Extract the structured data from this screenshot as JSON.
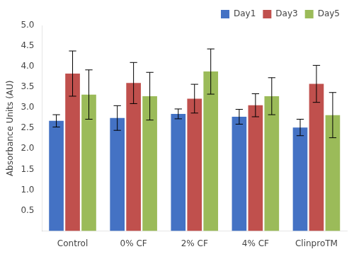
{
  "chart_data": {
    "type": "bar",
    "categories": [
      "Control",
      "0% CF",
      "2% CF",
      "4% CF",
      "ClinproTM"
    ],
    "series": [
      {
        "name": "Day1",
        "color": "#4472C4",
        "values": [
          2.68,
          2.75,
          2.85,
          2.78,
          2.52
        ],
        "errors": [
          0.15,
          0.3,
          0.12,
          0.18,
          0.2
        ]
      },
      {
        "name": "Day3",
        "color": "#C0504D",
        "values": [
          3.83,
          3.6,
          3.22,
          3.06,
          3.58
        ],
        "errors": [
          0.55,
          0.5,
          0.35,
          0.28,
          0.45
        ]
      },
      {
        "name": "Day5",
        "color": "#9BBB59",
        "values": [
          3.32,
          3.28,
          3.88,
          3.28,
          2.82
        ],
        "errors": [
          0.6,
          0.58,
          0.55,
          0.45,
          0.55
        ]
      }
    ],
    "ylabel": "Absorbance Units (AU)",
    "ylim": [
      0,
      5
    ],
    "yticks": [
      0.5,
      {
        "value": 1,
        "label": "1.0"
      },
      1.5,
      {
        "value": 2,
        "label": "2.0"
      },
      2.5,
      {
        "value": 3,
        "label": "3.0"
      },
      3.5,
      {
        "value": 4,
        "label": "4.0"
      },
      4.5,
      {
        "value": 5,
        "label": "5.0"
      }
    ],
    "grid": false,
    "legend": "upper right"
  }
}
